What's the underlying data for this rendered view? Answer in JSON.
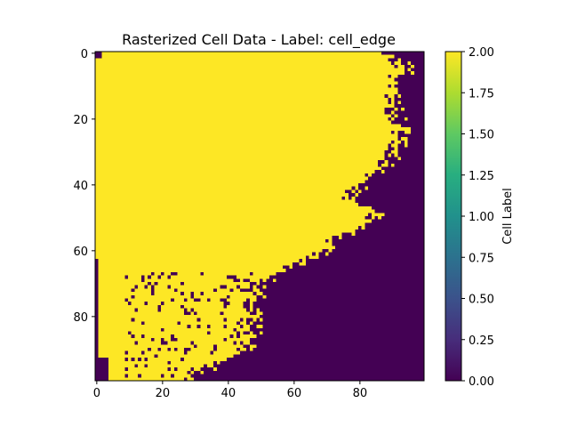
{
  "chart_data": {
    "type": "heatmap",
    "title": "Rasterized Cell Data - Label: cell_edge",
    "xlabel": "",
    "ylabel": "",
    "grid": false,
    "x_range": [
      0,
      99
    ],
    "y_range": [
      99,
      0
    ],
    "x_ticks": [
      0,
      20,
      40,
      60,
      80
    ],
    "y_ticks": [
      0,
      20,
      40,
      60,
      80
    ],
    "colorbar": {
      "label": "Cell Label",
      "range": [
        0.0,
        2.0
      ],
      "ticks": [
        "0.00",
        "0.25",
        "0.50",
        "0.75",
        "1.00",
        "1.25",
        "1.50",
        "1.75",
        "2.00"
      ],
      "colormap": "viridis"
    },
    "values_present": [
      0,
      2
    ],
    "colors": {
      "low": "#440154",
      "high": "#fde725"
    },
    "description_of_grid": "100x100 raster; value 2 (cell) fills the upper-left region, boundary runs from (row 0, col ~88) down to (row ~99, col ~30); remaining area is value 0"
  }
}
